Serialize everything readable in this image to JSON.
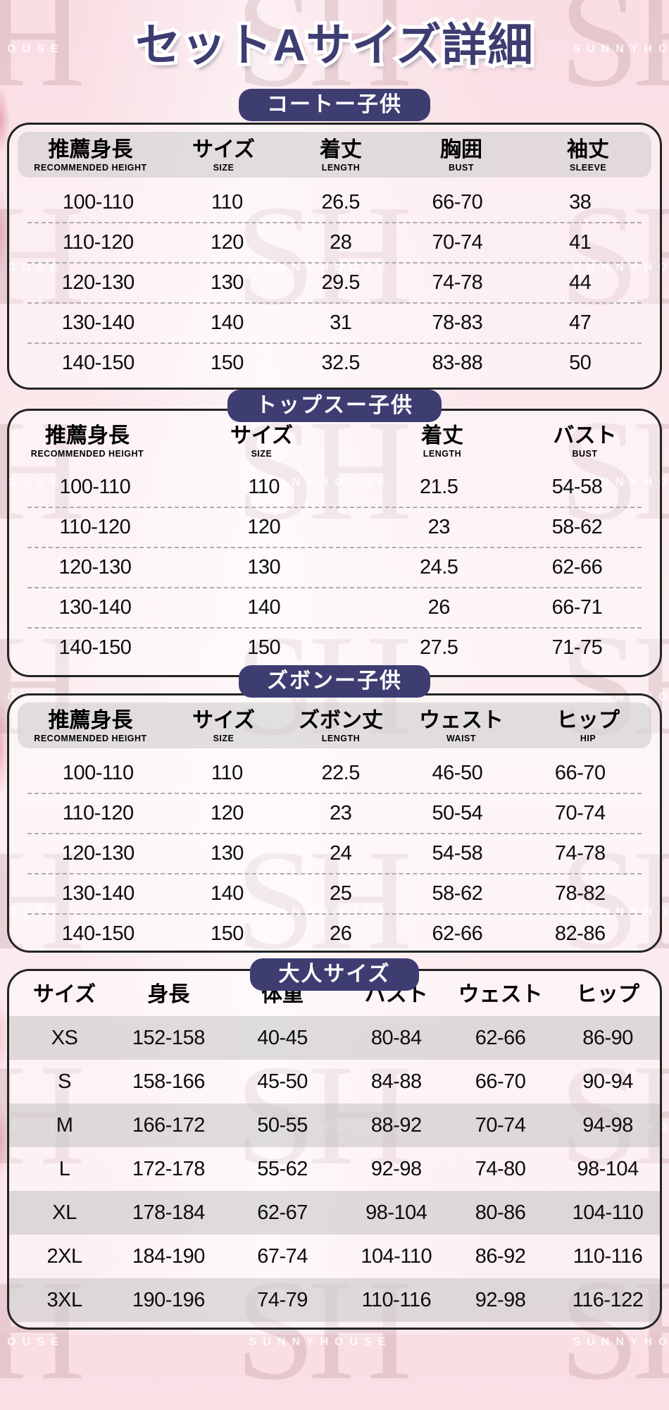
{
  "title": "セットAサイズ詳細",
  "watermark": {
    "initials": "SH",
    "brand": "SUNNYHOUSE"
  },
  "colors": {
    "accent_navy": "#3E3D72",
    "page_background_pink": "#FAE4E9",
    "table_border": "#232323",
    "header_strip_gray": "#E7E5E5",
    "adult_row_gray": "#DCDBDB",
    "watermark_maroon": "#702A37"
  },
  "sections": [
    {
      "badge": "コートー子供",
      "columns": [
        {
          "jp": "推薦身長",
          "en": "RECOMMENDED HEIGHT"
        },
        {
          "jp": "サイズ",
          "en": "SIZE"
        },
        {
          "jp": "着丈",
          "en": "LENGTH"
        },
        {
          "jp": "胸囲",
          "en": "BUST"
        },
        {
          "jp": "袖丈",
          "en": "SLEEVE"
        }
      ],
      "rows": [
        [
          "100-110",
          "110",
          "26.5",
          "66-70",
          "38"
        ],
        [
          "110-120",
          "120",
          "28",
          "70-74",
          "41"
        ],
        [
          "120-130",
          "130",
          "29.5",
          "74-78",
          "44"
        ],
        [
          "130-140",
          "140",
          "31",
          "78-83",
          "47"
        ],
        [
          "140-150",
          "150",
          "32.5",
          "83-88",
          "50"
        ]
      ]
    },
    {
      "badge": "トップスー子供",
      "columns": [
        {
          "jp": "推薦身長",
          "en": "RECOMMENDED HEIGHT"
        },
        {
          "jp": "サイズ",
          "en": "SIZE"
        },
        {
          "jp": "着丈",
          "en": "LENGTH"
        },
        {
          "jp": "バスト",
          "en": "BUST"
        }
      ],
      "rows": [
        [
          "100-110",
          "110",
          "21.5",
          "54-58"
        ],
        [
          "110-120",
          "120",
          "23",
          "58-62"
        ],
        [
          "120-130",
          "130",
          "24.5",
          "62-66"
        ],
        [
          "130-140",
          "140",
          "26",
          "66-71"
        ],
        [
          "140-150",
          "150",
          "27.5",
          "71-75"
        ]
      ]
    },
    {
      "badge": "ズボンー子供",
      "columns": [
        {
          "jp": "推薦身長",
          "en": "RECOMMENDED HEIGHT"
        },
        {
          "jp": "サイズ",
          "en": "SIZE"
        },
        {
          "jp": "ズボン丈",
          "en": "LENGTH"
        },
        {
          "jp": "ウェスト",
          "en": "WAIST"
        },
        {
          "jp": "ヒップ",
          "en": "HIP"
        }
      ],
      "rows": [
        [
          "100-110",
          "110",
          "22.5",
          "46-50",
          "66-70"
        ],
        [
          "110-120",
          "120",
          "23",
          "50-54",
          "70-74"
        ],
        [
          "120-130",
          "130",
          "24",
          "54-58",
          "74-78"
        ],
        [
          "130-140",
          "140",
          "25",
          "58-62",
          "78-82"
        ],
        [
          "140-150",
          "150",
          "26",
          "62-66",
          "82-86"
        ]
      ]
    },
    {
      "badge": "大人サイズ",
      "columns": [
        {
          "jp": "サイズ",
          "en": ""
        },
        {
          "jp": "身長",
          "en": ""
        },
        {
          "jp": "体重",
          "en": ""
        },
        {
          "jp": "バスト",
          "en": ""
        },
        {
          "jp": "ウェスト",
          "en": ""
        },
        {
          "jp": "ヒップ",
          "en": ""
        }
      ],
      "rows": [
        [
          "XS",
          "152-158",
          "40-45",
          "80-84",
          "62-66",
          "86-90"
        ],
        [
          "S",
          "158-166",
          "45-50",
          "84-88",
          "66-70",
          "90-94"
        ],
        [
          "M",
          "166-172",
          "50-55",
          "88-92",
          "70-74",
          "94-98"
        ],
        [
          "L",
          "172-178",
          "55-62",
          "92-98",
          "74-80",
          "98-104"
        ],
        [
          "XL",
          "178-184",
          "62-67",
          "98-104",
          "80-86",
          "104-110"
        ],
        [
          "2XL",
          "184-190",
          "67-74",
          "104-110",
          "86-92",
          "110-116"
        ],
        [
          "3XL",
          "190-196",
          "74-79",
          "110-116",
          "92-98",
          "116-122"
        ]
      ]
    }
  ]
}
